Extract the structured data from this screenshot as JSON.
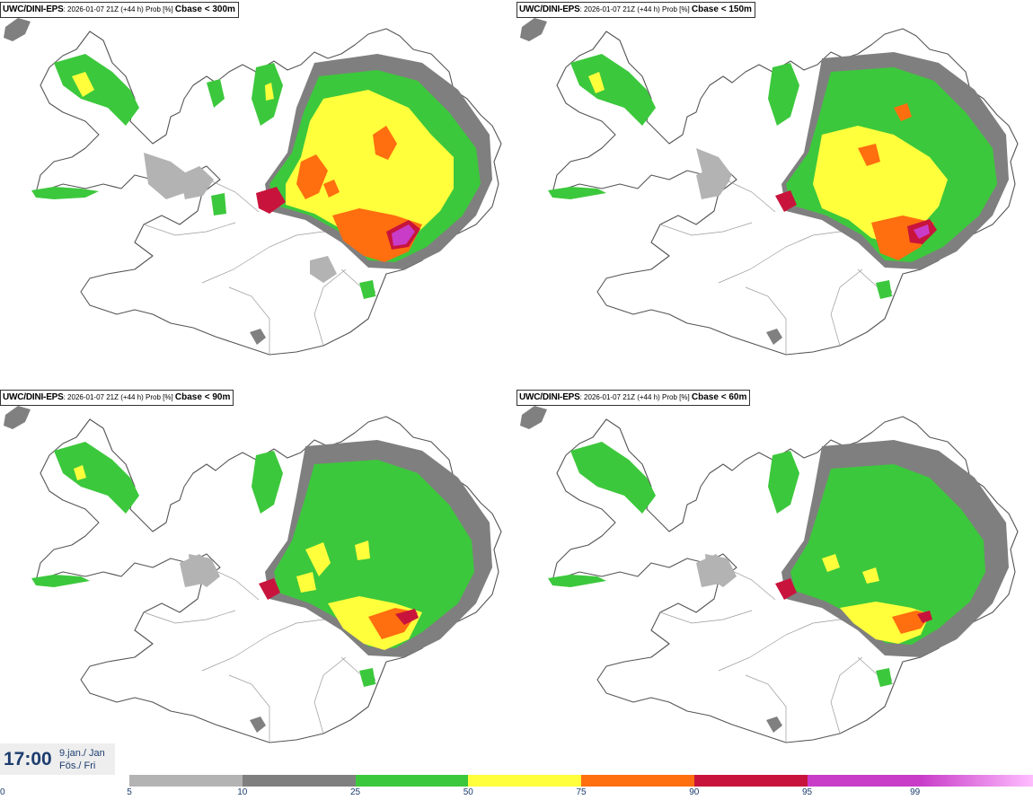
{
  "panels": [
    {
      "source": "UWC/DINI-EPS",
      "run": ": 2026-01-07 21Z (+44 h) Prob [%] ",
      "field": "Cbase < 300m"
    },
    {
      "source": "UWC/DINI-EPS",
      "run": ": 2026-01-07 21Z (+44 h) Prob [%] ",
      "field": "Cbase < 150m"
    },
    {
      "source": "UWC/DINI-EPS",
      "run": ": 2026-01-07 21Z (+44 h) Prob [%] ",
      "field": "Cbase < 90m"
    },
    {
      "source": "UWC/DINI-EPS",
      "run": ": 2026-01-07 21Z (+44 h) Prob [%] ",
      "field": "Cbase < 60m"
    }
  ],
  "valid_time": {
    "hour": "17:00",
    "date_line1": "9.jan./ Jan",
    "date_line2": "Fös./ Fri"
  },
  "legend": {
    "ticks": [
      "0",
      "5",
      "10",
      "25",
      "50",
      "75",
      "90",
      "95",
      "99"
    ],
    "colors": [
      "#b3b3b3",
      "#7f7f7f",
      "#3cc83c",
      "#ffff3c",
      "#ff6e0f",
      "#c8143c",
      "#c83cc8",
      "#ffbeff"
    ],
    "palette_index": {
      "light_gray": "#b3b3b3",
      "gray": "#7f7f7f",
      "green": "#3cc83c",
      "yellow": "#ffff3c",
      "orange": "#ff6e0f",
      "red": "#c8143c",
      "magenta": "#c83cc8"
    }
  }
}
